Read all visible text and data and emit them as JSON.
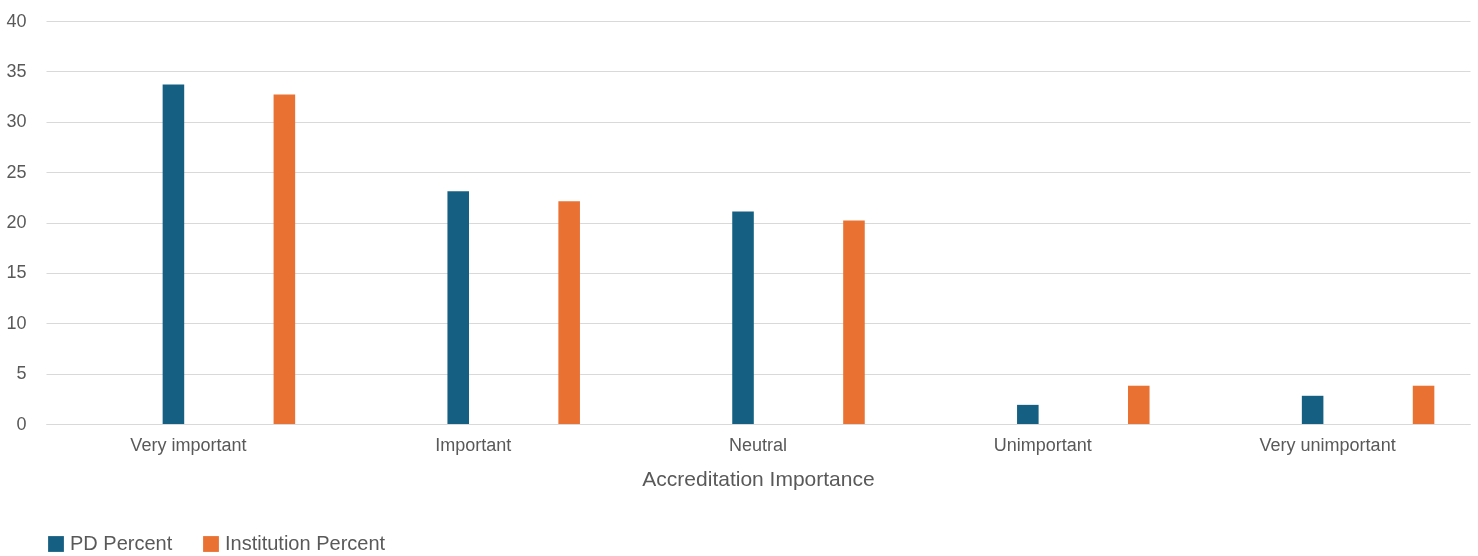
{
  "chart_data": {
    "type": "bar",
    "xlabel": "Accreditation Importance",
    "categories": [
      "Very important",
      "Important",
      "Neutral",
      "Unimportant",
      "Very unimportant"
    ],
    "series": [
      {
        "name": "PD Percent",
        "color": "#156082",
        "values": [
          33.7,
          23.1,
          21.1,
          1.9,
          2.8
        ]
      },
      {
        "name": "Institution Percent",
        "color": "#e97132",
        "values": [
          32.7,
          22.1,
          20.2,
          3.8,
          3.8
        ]
      }
    ],
    "ylim": [
      0,
      40
    ],
    "yticks": [
      0,
      5,
      10,
      15,
      20,
      25,
      30,
      35,
      40
    ],
    "grid": "y",
    "legend": "bottom"
  }
}
